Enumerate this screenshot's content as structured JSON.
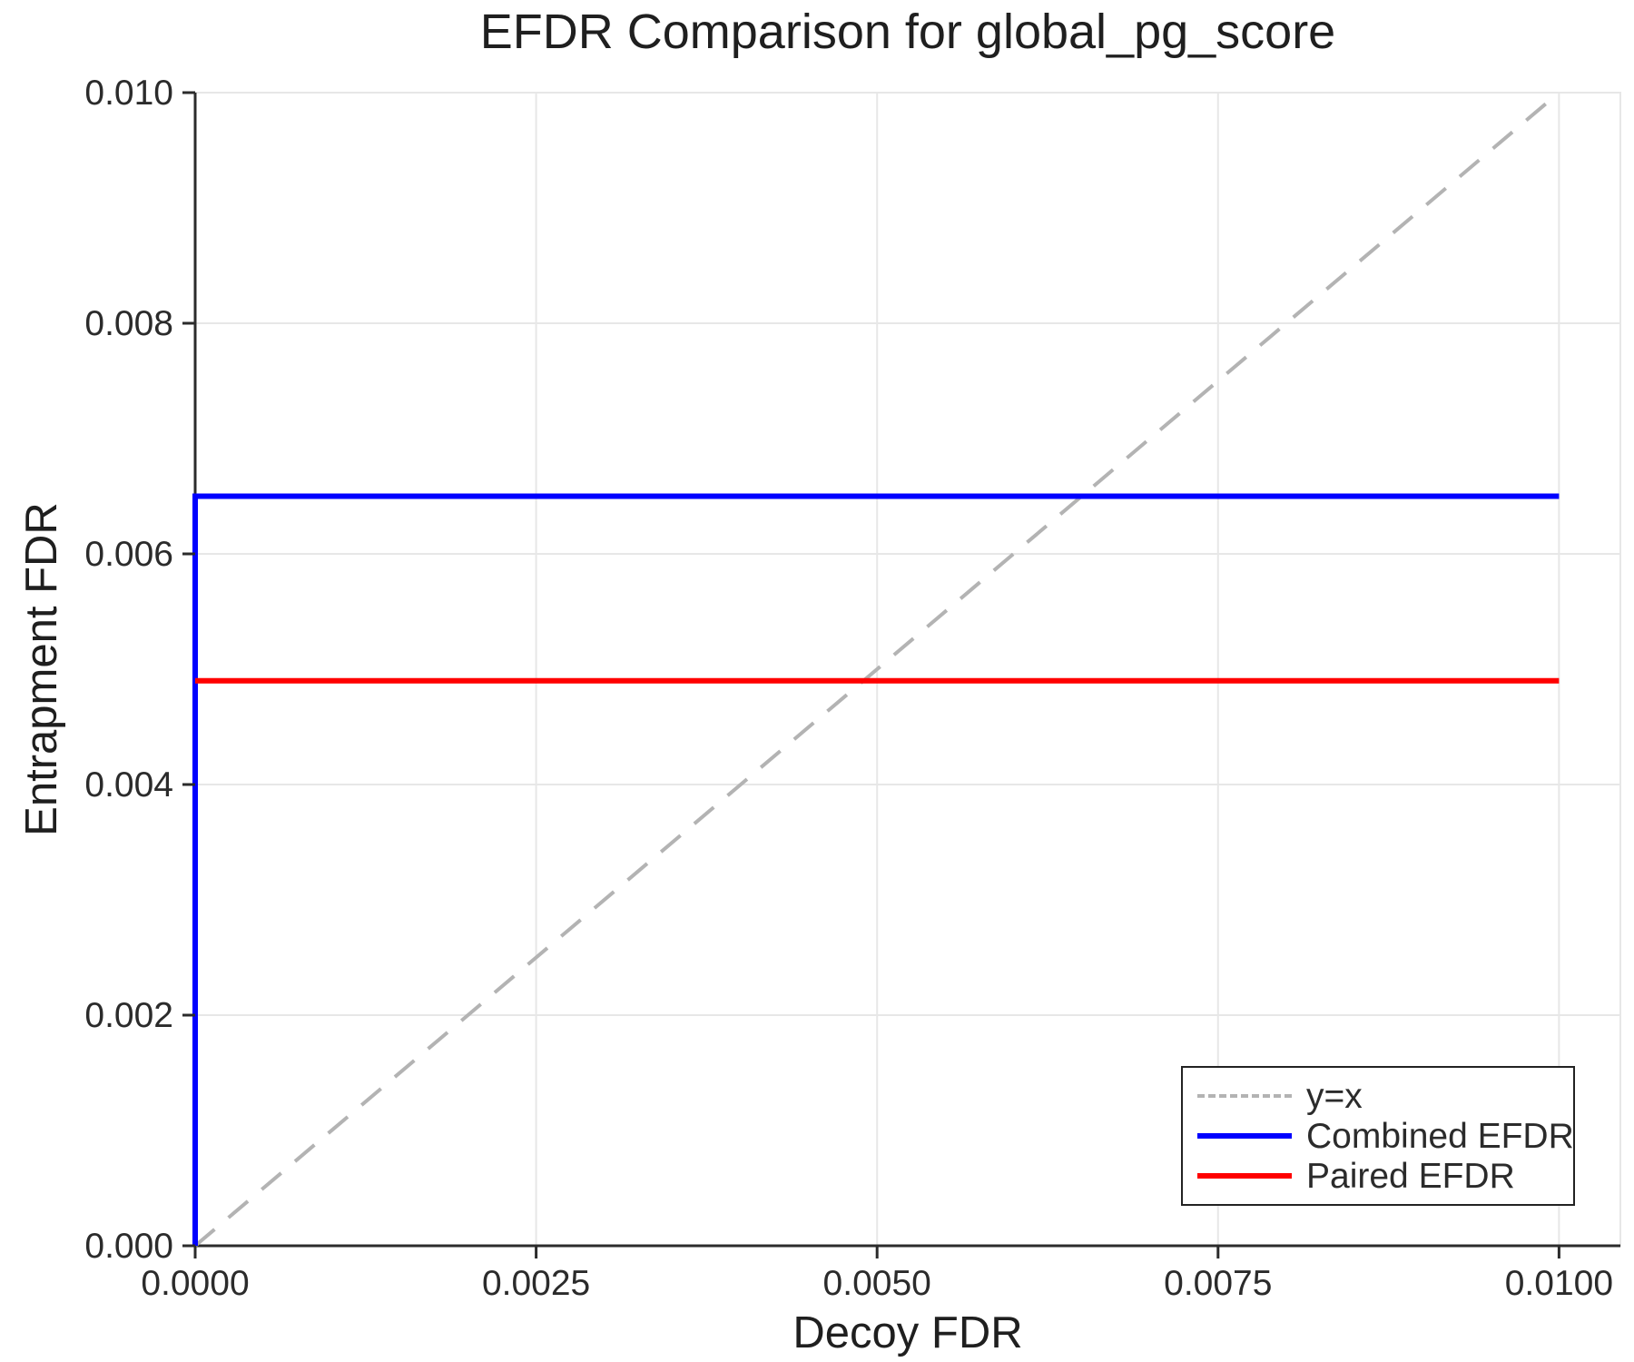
{
  "chart_data": {
    "type": "line",
    "title": "EFDR Comparison for global_pg_score",
    "xlabel": "Decoy FDR",
    "ylabel": "Entrapment FDR",
    "xlim": [
      0,
      0.01045
    ],
    "ylim": [
      0,
      0.01
    ],
    "x_ticks": [
      0.0,
      0.0025,
      0.005,
      0.0075,
      0.01
    ],
    "x_tick_labels": [
      "0.0000",
      "0.0025",
      "0.0050",
      "0.0075",
      "0.0100"
    ],
    "y_ticks": [
      0.0,
      0.002,
      0.004,
      0.006,
      0.008,
      0.01
    ],
    "y_tick_labels": [
      "0.000",
      "0.002",
      "0.004",
      "0.006",
      "0.008",
      "0.010"
    ],
    "grid": true,
    "legend_position": "bottom-right",
    "series": [
      {
        "name": "y=x",
        "color": "#b3b3b3",
        "style": "dashed",
        "width": 4,
        "points": [
          [
            0.0,
            0.0
          ],
          [
            0.01,
            0.01
          ]
        ]
      },
      {
        "name": "Combined EFDR",
        "color": "#0000ff",
        "style": "solid",
        "width": 6,
        "points": [
          [
            0.0,
            0.0
          ],
          [
            0.0,
            0.0065
          ],
          [
            0.01,
            0.0065
          ]
        ]
      },
      {
        "name": "Paired EFDR",
        "color": "#ff0000",
        "style": "solid",
        "width": 6,
        "points": [
          [
            0.0,
            0.0049
          ],
          [
            0.01,
            0.0049
          ]
        ]
      }
    ]
  },
  "colors": {
    "background": "#ffffff",
    "grid": "#e7e7e7",
    "axis": "#2b2b2b",
    "text": "#2b2b2b"
  }
}
